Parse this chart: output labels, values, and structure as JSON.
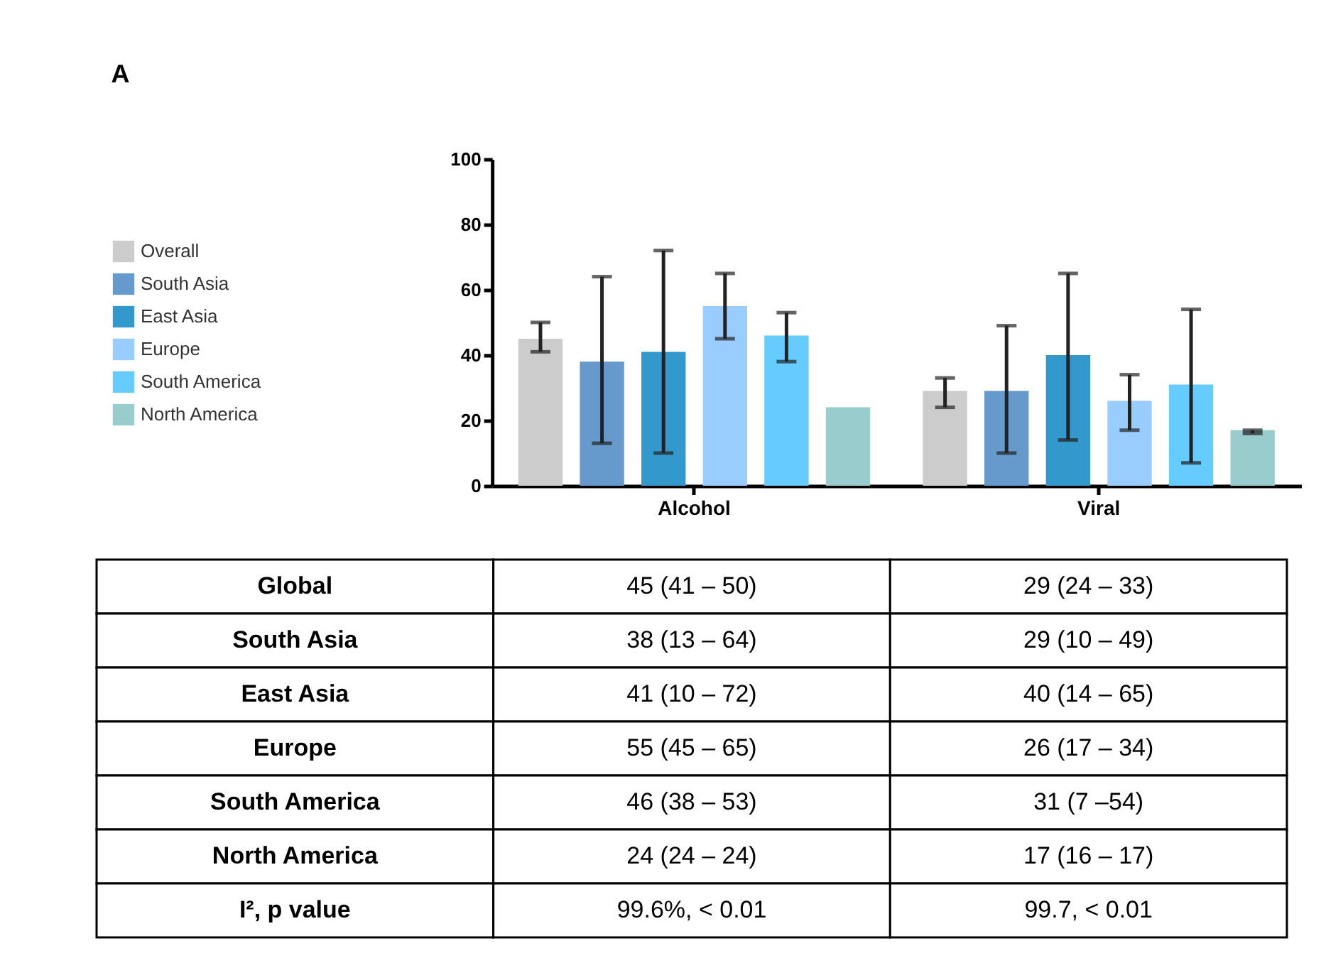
{
  "chart_data": {
    "type": "bar",
    "title": "A",
    "categories": [
      "Alcohol",
      "Viral"
    ],
    "ylim": [
      0,
      100
    ],
    "yticks": [
      0,
      20,
      40,
      60,
      80,
      100
    ],
    "legend": "left",
    "series": [
      {
        "name": "Overall",
        "color": "#cccccc",
        "values": [
          45,
          29
        ],
        "errors": [
          [
            41,
            50
          ],
          [
            24,
            33
          ]
        ],
        "value_labels": [
          "45 (41 – 50)",
          "29 (24 – 33)"
        ]
      },
      {
        "name": "South Asia",
        "color": "#6699cc",
        "values": [
          38,
          29
        ],
        "errors": [
          [
            13,
            64
          ],
          [
            10,
            49
          ]
        ],
        "value_labels": [
          "38 (13 – 64)",
          "29 (10 – 49)"
        ]
      },
      {
        "name": "East Asia",
        "color": "#3399cc",
        "values": [
          41,
          40
        ],
        "errors": [
          [
            10,
            72
          ],
          [
            14,
            65
          ]
        ],
        "value_labels": [
          "41 (10 – 72)",
          "40 (14 – 65)"
        ]
      },
      {
        "name": "Europe",
        "color": "#99ccff",
        "values": [
          55,
          26
        ],
        "errors": [
          [
            45,
            65
          ],
          [
            17,
            34
          ]
        ],
        "value_labels": [
          "55 (45 – 65)",
          "26 (17 – 34)"
        ]
      },
      {
        "name": "South America",
        "color": "#66ccff",
        "values": [
          46,
          31
        ],
        "errors": [
          [
            38,
            53
          ],
          [
            7,
            54
          ]
        ],
        "value_labels": [
          "46 (38 – 53)",
          "31 (7 –54)"
        ]
      },
      {
        "name": "North America",
        "color": "#99cccc",
        "values": [
          24,
          17
        ],
        "errors": [
          null,
          [
            16,
            17
          ]
        ],
        "value_labels": [
          "24 (24 – 24)",
          "17 (16 – 17)"
        ]
      }
    ],
    "annotations": [
      "Global",
      "South Asia",
      "East Asia",
      "Europe",
      "South America",
      "North America",
      "I², p value",
      "99.6%, < 0.01",
      "99.7, < 0.01"
    ]
  }
}
